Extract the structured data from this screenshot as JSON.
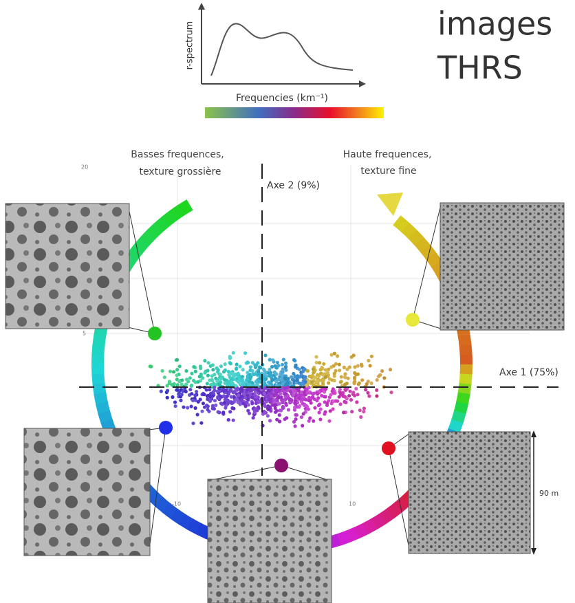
{
  "spectrum": {
    "y_label": "r-spectrum",
    "x_label": "Frequencies (km⁻¹)"
  },
  "title": {
    "lines": [
      "images",
      "THRS"
    ]
  },
  "annotations": {
    "low": [
      "Basses frequences,",
      "texture grossière"
    ],
    "high": [
      "Haute frequences,",
      "texture fine"
    ]
  },
  "axes": {
    "axis2": "Axe 2 (9%)",
    "axis1": "Axe 1 (75%)"
  },
  "ticks": [
    "20",
    "5",
    "-10",
    "10"
  ],
  "scale": "90 m"
}
